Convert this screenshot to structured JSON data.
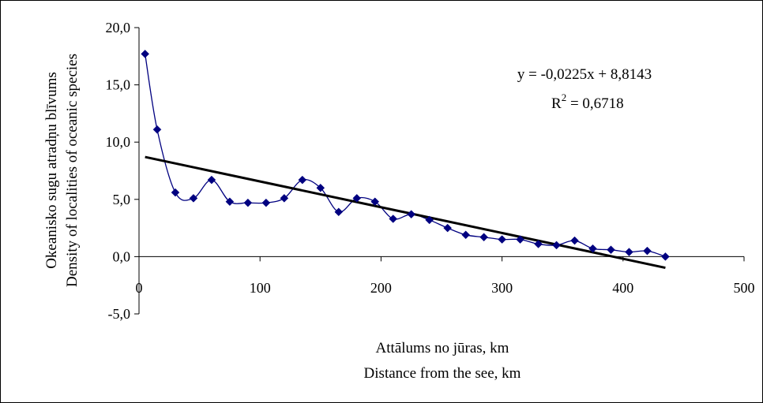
{
  "chart_data": {
    "type": "scatter",
    "xlabel": [
      "Attālums no jūras, km",
      "Distance from the see, km"
    ],
    "ylabel": [
      "Okeanisko sugu atradņu blīvums",
      "Density of localities of oceanic species"
    ],
    "xlim": [
      0,
      500
    ],
    "ylim": [
      -5,
      20
    ],
    "x_ticks": [
      0,
      100,
      200,
      300,
      400,
      500
    ],
    "x_tick_labels": [
      "0",
      "100",
      "200",
      "300",
      "400",
      "500"
    ],
    "y_ticks": [
      -5,
      0,
      5,
      10,
      15,
      20
    ],
    "y_tick_labels": [
      "-5,0",
      "0,0",
      "5,0",
      "10,0",
      "15,0",
      "20,0"
    ],
    "grid": false,
    "series": [
      {
        "style": "smoothed line with diamond markers",
        "color": "#000080",
        "x": [
          5,
          15,
          30,
          45,
          60,
          75,
          90,
          105,
          120,
          135,
          150,
          165,
          180,
          195,
          210,
          225,
          240,
          255,
          270,
          285,
          300,
          315,
          330,
          345,
          360,
          375,
          390,
          405,
          420,
          435
        ],
        "y": [
          17.7,
          11.1,
          5.6,
          5.1,
          6.7,
          4.8,
          4.7,
          4.7,
          5.1,
          6.7,
          6.0,
          3.9,
          5.1,
          4.8,
          3.3,
          3.7,
          3.2,
          2.5,
          1.9,
          1.7,
          1.5,
          1.5,
          1.1,
          1.0,
          1.4,
          0.7,
          0.6,
          0.4,
          0.5,
          0.0
        ]
      }
    ],
    "trendline": {
      "slope": -0.0225,
      "intercept": 8.8143,
      "x_range": [
        5,
        435
      ],
      "color": "#000000",
      "equation": "y = -0,0225x + 8,8143",
      "r2_label": "R",
      "r2_sup": "2",
      "r2_value": " = 0,6718"
    }
  }
}
